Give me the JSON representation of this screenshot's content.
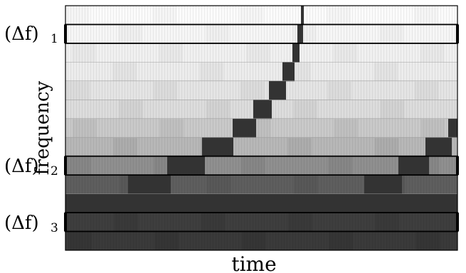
{
  "labels": {
    "ylabel": "frequency",
    "xlabel": "time",
    "delta_f": "(Δf)",
    "sub1": "1",
    "sub2": "2",
    "sub3": "3"
  },
  "rows": 13,
  "colors": {
    "background": "#ffffff",
    "frame": "#000000",
    "cell_lines": "#bdbdbd",
    "dark_feature": "#333333"
  },
  "band_shades": [
    "#fbfbfb",
    "#f6f6f6",
    "#f0f0f0",
    "#ececec",
    "#e4e4e4",
    "#dcdcdc",
    "#c9c9c9",
    "#b7b7b7",
    "#8f8f8f",
    "#5e5e5e",
    "#4a4a4a",
    "#3e3e3e",
    "#3a3a3a",
    "#383838"
  ],
  "highlighted_bands": [
    1,
    8,
    11
  ]
}
